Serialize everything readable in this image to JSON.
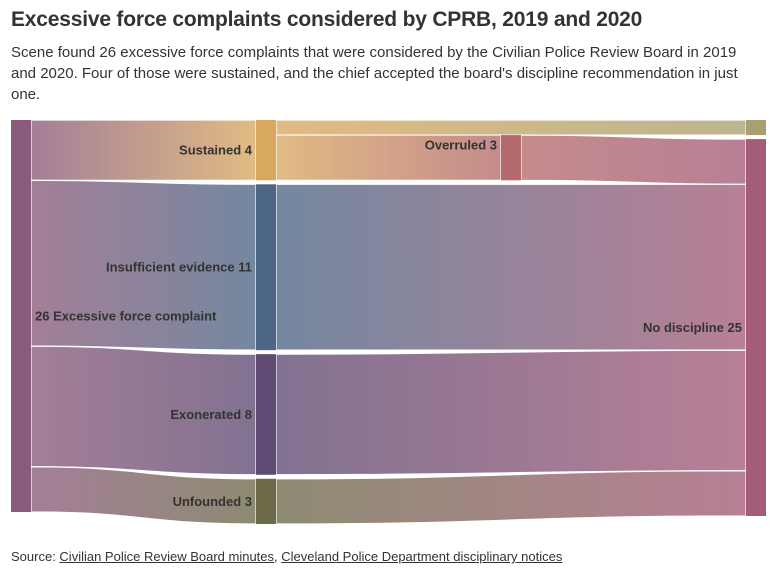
{
  "title": "Excessive force complaints considered by CPRB, 2019 and 2020",
  "subtitle": "Scene found 26 excessive force complaints that were considered by the Civilian Police Review Board in 2019 and 2020. Four of those were sustained, and the chief accepted the board's discipline recommendation in just one.",
  "source": {
    "prefix": "Source: ",
    "link1": "Civilian Police Review Board minutes",
    "separator": ", ",
    "link2": "Cleveland Police Department disciplinary notices"
  },
  "chart_data": {
    "type": "sankey",
    "nodes": [
      {
        "id": "total",
        "label": "26 Excessive force complaint",
        "value": 26,
        "column": 0,
        "color": "#8a5a7a"
      },
      {
        "id": "sustained",
        "label": "Sustained 4",
        "value": 4,
        "column": 1,
        "color": "#d8a860"
      },
      {
        "id": "insufficient",
        "label": "Insufficient evidence 11",
        "value": 11,
        "column": 1,
        "color": "#4d6685"
      },
      {
        "id": "exonerated",
        "label": "Exonerated 8",
        "value": 8,
        "column": 1,
        "color": "#5e4a72"
      },
      {
        "id": "unfounded",
        "label": "Unfounded 3",
        "value": 3,
        "column": 1,
        "color": "#6d6a4a"
      },
      {
        "id": "overruled",
        "label": "Overruled 3",
        "value": 3,
        "column": 2,
        "color": "#b46a6c"
      },
      {
        "id": "discipline",
        "label": "",
        "value": 1,
        "column": 3,
        "color": "#a8a070"
      },
      {
        "id": "no_discipline",
        "label": "No discipline 25",
        "value": 25,
        "column": 3,
        "color": "#a45c78"
      }
    ],
    "links": [
      {
        "source": "total",
        "target": "sustained",
        "value": 4
      },
      {
        "source": "total",
        "target": "insufficient",
        "value": 11
      },
      {
        "source": "total",
        "target": "exonerated",
        "value": 8
      },
      {
        "source": "total",
        "target": "unfounded",
        "value": 3
      },
      {
        "source": "sustained",
        "target": "discipline",
        "value": 1
      },
      {
        "source": "sustained",
        "target": "overruled",
        "value": 3
      },
      {
        "source": "overruled",
        "target": "no_discipline",
        "value": 3
      },
      {
        "source": "insufficient",
        "target": "no_discipline",
        "value": 11
      },
      {
        "source": "exonerated",
        "target": "no_discipline",
        "value": 8
      },
      {
        "source": "unfounded",
        "target": "no_discipline",
        "value": 3
      }
    ]
  }
}
